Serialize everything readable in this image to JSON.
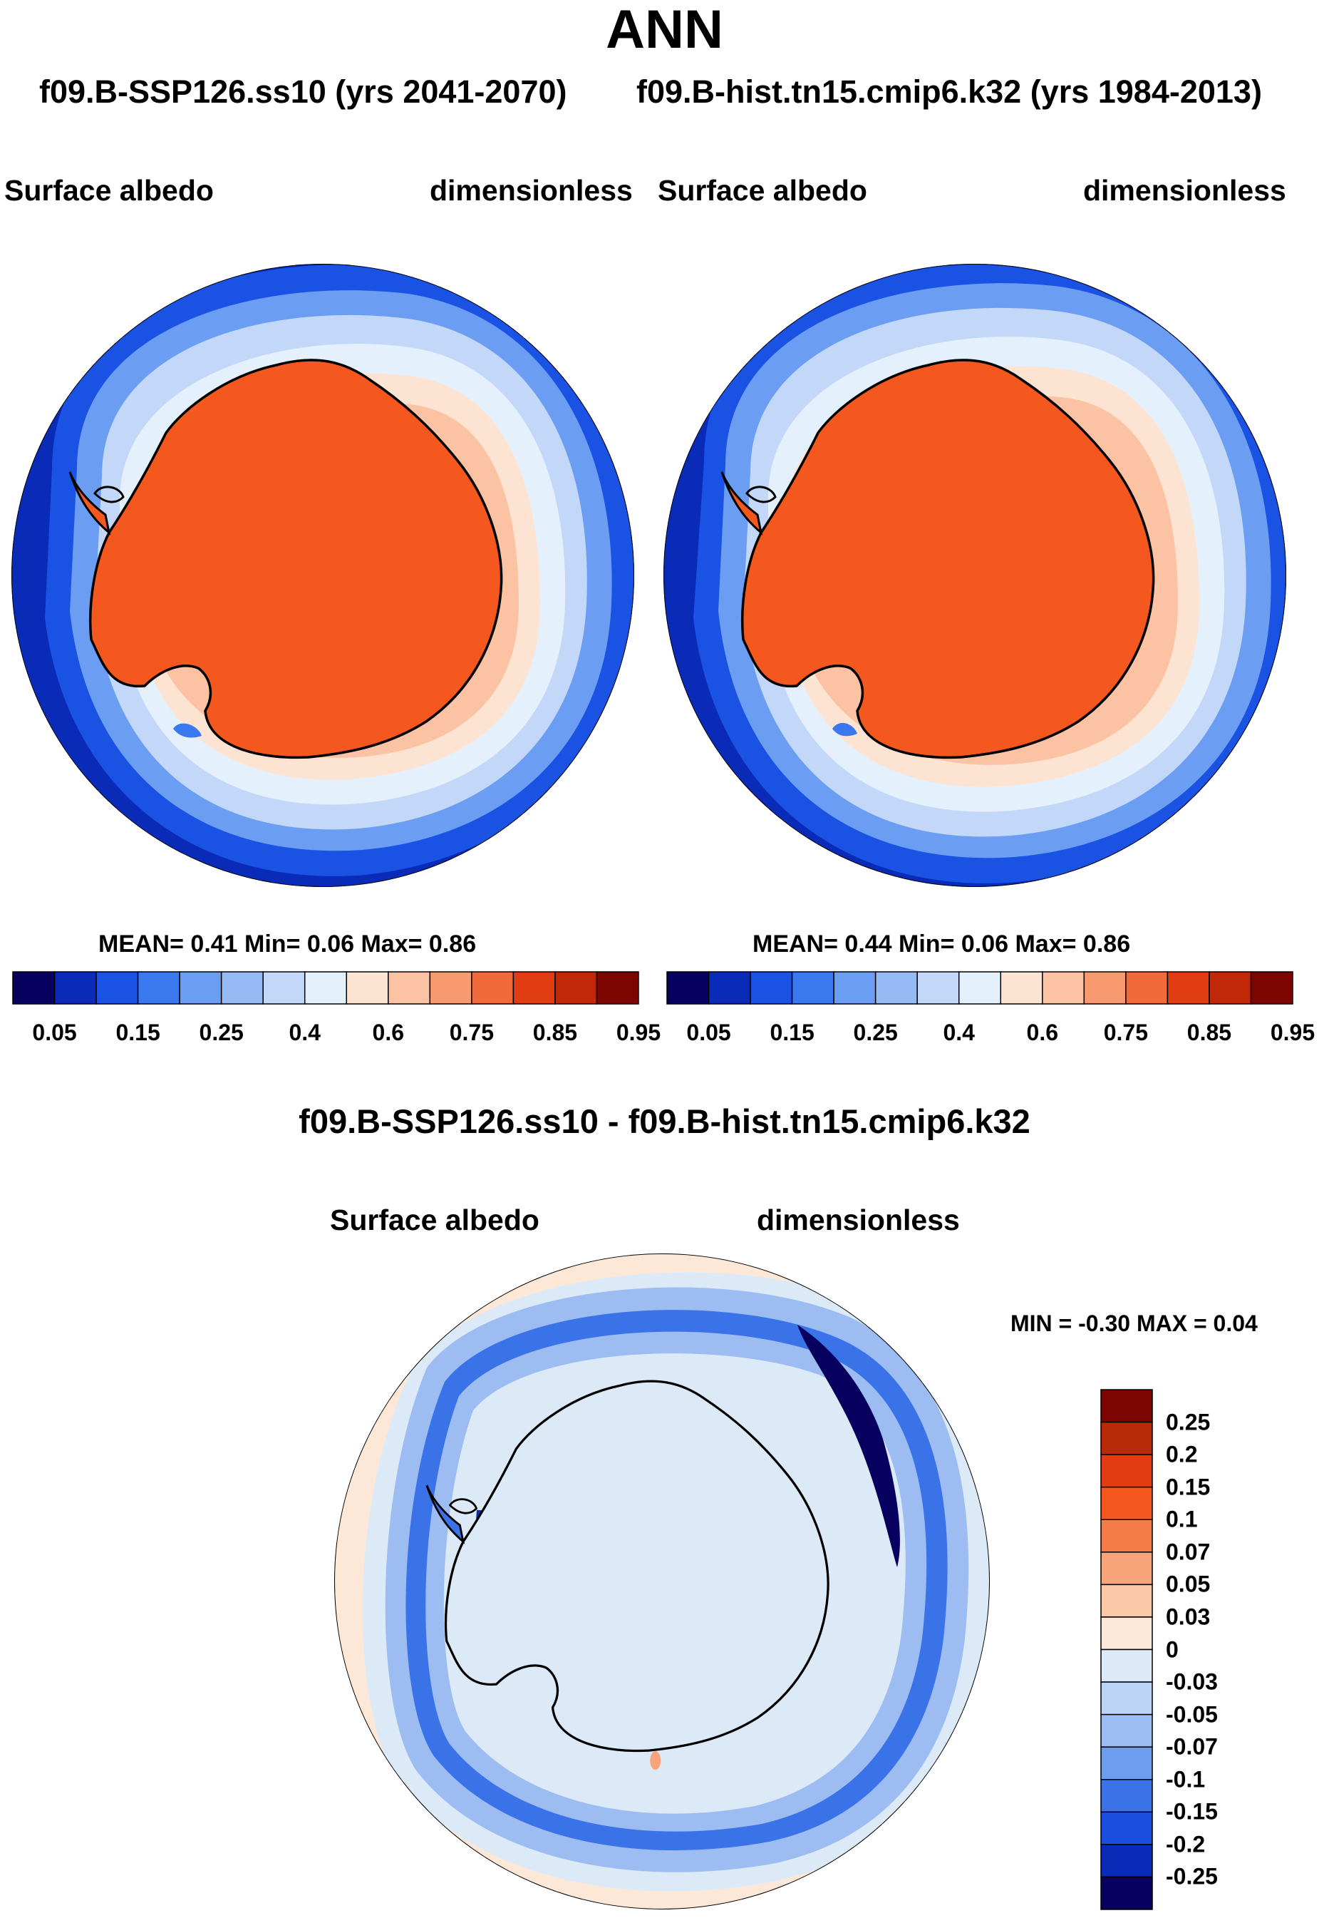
{
  "header": {
    "title": "ANN",
    "case_left": "f09.B-SSP126.ss10 (yrs 2041-2070)",
    "case_right": "f09.B-hist.tn15.cmip6.k32 (yrs 1984-2013)"
  },
  "panel_left": {
    "variable": "Surface albedo",
    "units": "dimensionless",
    "stats": "MEAN=   0.41  Min=   0.06  Max=   0.86"
  },
  "panel_right": {
    "variable": "Surface albedo",
    "units": "dimensionless",
    "stats": "MEAN=   0.44  Min=   0.06  Max=   0.86"
  },
  "diff_panel": {
    "title": "f09.B-SSP126.ss10 - f09.B-hist.tn15.cmip6.k32",
    "variable": "Surface albedo",
    "units": "dimensionless",
    "minmax": "MIN =  -0.30 MAX =   0.04"
  },
  "chart_data": [
    {
      "type": "heatmap",
      "title": "Surface albedo (2041-2070)",
      "projection": "south polar stereographic",
      "units": "dimensionless",
      "mean": 0.41,
      "min": 0.06,
      "max": 0.86,
      "colorbar_ticks": [
        "0.05",
        "0.15",
        "0.25",
        "0.4",
        "0.6",
        "0.75",
        "0.85",
        "0.95"
      ],
      "colorbar_colors": [
        "#08005e",
        "#0a2ab8",
        "#1a52e4",
        "#3a78f0",
        "#6b9ef2",
        "#96baf4",
        "#c3d8f8",
        "#e4f0fc",
        "#fde4d2",
        "#fbc2a4",
        "#f89a70",
        "#f36a3a",
        "#e23d12",
        "#c02808",
        "#7c0500"
      ]
    },
    {
      "type": "heatmap",
      "title": "Surface albedo (1984-2013)",
      "projection": "south polar stereographic",
      "units": "dimensionless",
      "mean": 0.44,
      "min": 0.06,
      "max": 0.86,
      "colorbar_ticks": [
        "0.05",
        "0.15",
        "0.25",
        "0.4",
        "0.6",
        "0.75",
        "0.85",
        "0.95"
      ],
      "colorbar_colors": [
        "#08005e",
        "#0a2ab8",
        "#1a52e4",
        "#3a78f0",
        "#6b9ef2",
        "#96baf4",
        "#c3d8f8",
        "#e4f0fc",
        "#fde4d2",
        "#fbc2a4",
        "#f89a70",
        "#f36a3a",
        "#e23d12",
        "#c02808",
        "#7c0500"
      ]
    },
    {
      "type": "heatmap",
      "title": "Surface albedo difference",
      "projection": "south polar stereographic",
      "units": "dimensionless",
      "min": -0.3,
      "max": 0.04,
      "colorbar_ticks": [
        "0.25",
        "0.2",
        "0.15",
        "0.1",
        "0.07",
        "0.05",
        "0.03",
        "0",
        "-0.03",
        "-0.05",
        "-0.07",
        "-0.1",
        "-0.15",
        "-0.2",
        "-0.25"
      ],
      "colorbar_colors": [
        "#7c0500",
        "#b82a08",
        "#e23d12",
        "#f5581e",
        "#f47c48",
        "#f8a47a",
        "#fbc8a8",
        "#fde8d8",
        "#dceaf8",
        "#bcd4f6",
        "#9cbcf2",
        "#6e9cee",
        "#3a72e8",
        "#1a4ede",
        "#0a2ab8",
        "#08005e"
      ]
    }
  ]
}
